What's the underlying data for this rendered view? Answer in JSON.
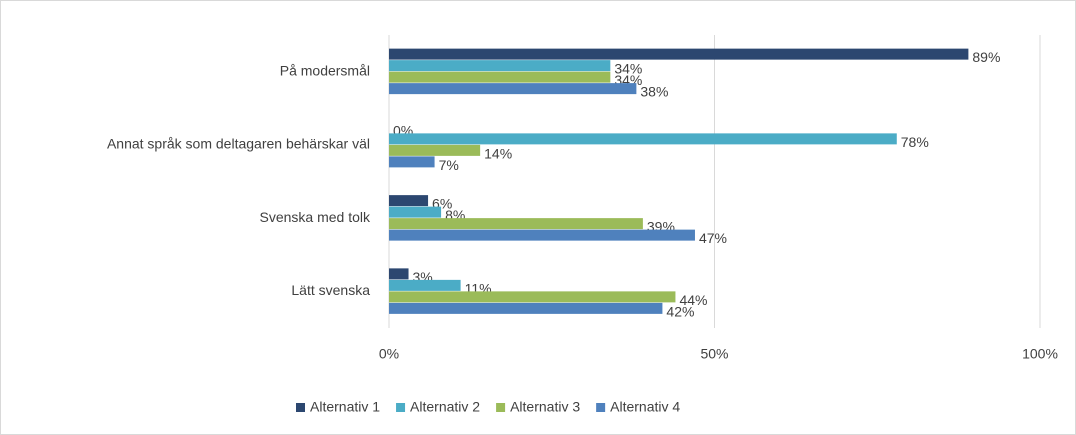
{
  "chart_data": {
    "type": "bar",
    "orientation": "horizontal",
    "categories": [
      "På modersmål",
      "Annat språk som deltagaren behärskar väl",
      "Svenska med tolk",
      "Lätt svenska"
    ],
    "series": [
      {
        "name": "Alternativ 1",
        "color": "#2c4770",
        "values": [
          89,
          0,
          6,
          3
        ],
        "value_labels": [
          "89%",
          "0%",
          "6%",
          "3%"
        ]
      },
      {
        "name": "Alternativ 2",
        "color": "#4bacc6",
        "values": [
          34,
          78,
          8,
          11
        ],
        "value_labels": [
          "34%",
          "78%",
          "8%",
          "11%"
        ]
      },
      {
        "name": "Alternativ 3",
        "color": "#9bbb59",
        "values": [
          34,
          14,
          39,
          44
        ],
        "value_labels": [
          "34%",
          "14%",
          "39%",
          "44%"
        ]
      },
      {
        "name": "Alternativ 4",
        "color": "#4f81bd",
        "values": [
          38,
          7,
          47,
          42
        ],
        "value_labels": [
          "38%",
          "7%",
          "47%",
          "42%"
        ]
      }
    ],
    "xlim": [
      0,
      100
    ],
    "xticks": [
      {
        "value": 0,
        "label": "0%"
      },
      {
        "value": 50,
        "label": "50%"
      },
      {
        "value": 100,
        "label": "100%"
      }
    ],
    "grid": true,
    "legend": "bottom"
  }
}
